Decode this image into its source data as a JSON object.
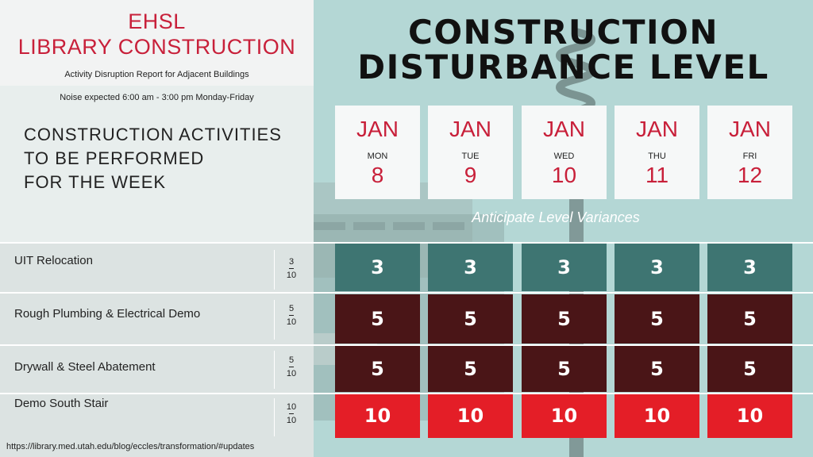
{
  "header": {
    "org_line1": "EHSL",
    "org_line2": "LIBRARY CONSTRUCTION",
    "subtitle": "Activity Disruption Report for Adjacent Buildings",
    "noise_note": "Noise expected 6:00 am - 3:00 pm Monday-Friday",
    "title_line1": "CONSTRUCTION",
    "title_line2": "DISTURBANCE LEVEL"
  },
  "activities_heading": [
    "CONSTRUCTION ACTIVITIES",
    "TO BE PERFORMED",
    "FOR THE WEEK"
  ],
  "days": [
    {
      "month": "JAN",
      "weekday": "MON",
      "day": "8"
    },
    {
      "month": "JAN",
      "weekday": "TUE",
      "day": "9"
    },
    {
      "month": "JAN",
      "weekday": "WED",
      "day": "10"
    },
    {
      "month": "JAN",
      "weekday": "THU",
      "day": "11"
    },
    {
      "month": "JAN",
      "weekday": "FRI",
      "day": "12"
    }
  ],
  "variance_note": "Anticipate Level Variances",
  "rows": [
    {
      "activity": "UIT Relocation",
      "level": "3",
      "max": "10",
      "values": [
        "3",
        "3",
        "3",
        "3",
        "3"
      ],
      "color": "#3e7572"
    },
    {
      "activity": "Rough Plumbing & Electrical Demo",
      "level": "5",
      "max": "10",
      "values": [
        "5",
        "5",
        "5",
        "5",
        "5"
      ],
      "color": "#4a1517"
    },
    {
      "activity": "Drywall & Steel Abatement",
      "level": "5",
      "max": "10",
      "values": [
        "5",
        "5",
        "5",
        "5",
        "5"
      ],
      "color": "#4a1517"
    },
    {
      "activity": "Demo South Stair",
      "level": "10",
      "max": "10",
      "values": [
        "10",
        "10",
        "10",
        "10",
        "10"
      ],
      "color": "#e41e27"
    }
  ],
  "footer": {
    "url": "https://library.med.utah.edu/blog/eccles/transformation/#updates"
  },
  "colors": {
    "accent_red": "#c8203a",
    "teal": "#b4d7d5"
  }
}
